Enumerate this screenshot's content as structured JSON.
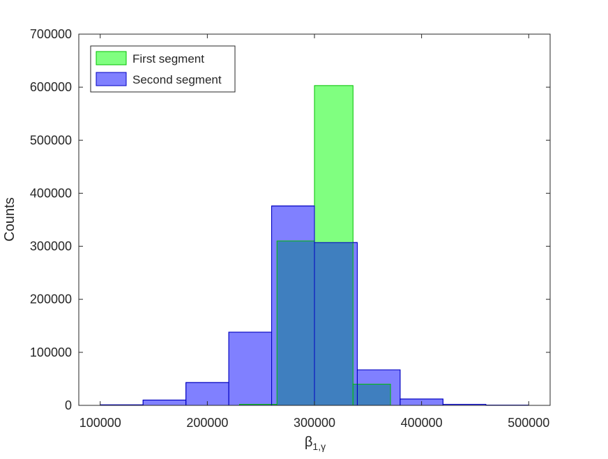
{
  "chart_data": {
    "type": "bar",
    "xlabel": "β",
    "xlabel_sub": "1,γ",
    "ylabel": "Counts",
    "xlim": [
      80000,
      520000
    ],
    "ylim": [
      0,
      700000
    ],
    "xticks": [
      100000,
      200000,
      300000,
      400000,
      500000
    ],
    "yticks": [
      0,
      100000,
      200000,
      300000,
      400000,
      500000,
      600000,
      700000
    ],
    "xtick_labels": [
      "100000",
      "200000",
      "300000",
      "400000",
      "500000"
    ],
    "ytick_labels": [
      "0",
      "100000",
      "200000",
      "300000",
      "400000",
      "500000",
      "600000",
      "700000"
    ],
    "legend_position": "top-left",
    "grid": false,
    "series": [
      {
        "name": "Second segment",
        "fill": "#8080ff",
        "edge": "#0000c0",
        "bins": [
          {
            "x0": 100000,
            "x1": 140000,
            "value": 1000
          },
          {
            "x0": 140000,
            "x1": 180000,
            "value": 10000
          },
          {
            "x0": 180000,
            "x1": 220000,
            "value": 43000
          },
          {
            "x0": 220000,
            "x1": 260000,
            "value": 138000
          },
          {
            "x0": 260000,
            "x1": 300000,
            "value": 376000
          },
          {
            "x0": 300000,
            "x1": 340000,
            "value": 307000
          },
          {
            "x0": 340000,
            "x1": 380000,
            "value": 67000
          },
          {
            "x0": 380000,
            "x1": 420000,
            "value": 12000
          },
          {
            "x0": 420000,
            "x1": 460000,
            "value": 2000
          },
          {
            "x0": 460000,
            "x1": 500000,
            "value": 500
          }
        ]
      },
      {
        "name": "First segment",
        "fill": "#80ff80",
        "edge": "#00c000",
        "overlap_fill": "#3f7fbf",
        "bins": [
          {
            "x0": 230000,
            "x1": 265000,
            "value": 2000
          },
          {
            "x0": 265000,
            "x1": 300000,
            "value": 310000
          },
          {
            "x0": 300000,
            "x1": 336000,
            "value": 603000
          },
          {
            "x0": 336000,
            "x1": 371000,
            "value": 40000
          }
        ]
      }
    ]
  }
}
